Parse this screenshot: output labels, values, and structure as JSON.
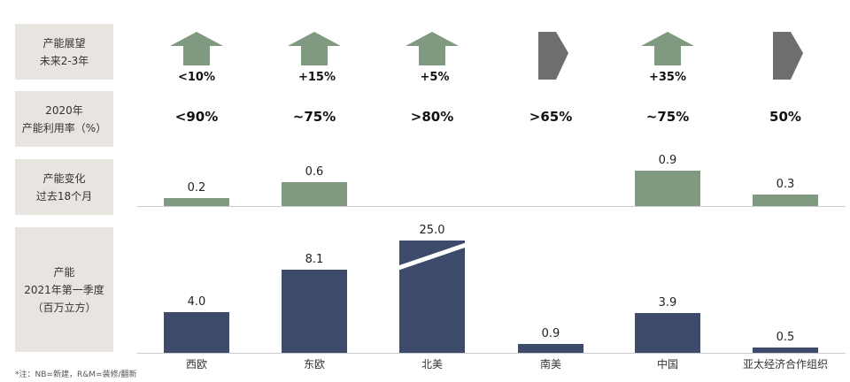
{
  "row_labels": [
    {
      "line1": "产能展望",
      "line2": "未来2-3年"
    },
    {
      "line1": "2020年",
      "line2": "产能利用率（%）"
    },
    {
      "line1": "产能变化",
      "line2": "过去18个月"
    },
    {
      "line1": "产能",
      "line2": "2021年第一季度",
      "line3": "（百万立方）"
    }
  ],
  "colors": {
    "green": "#7f9a80",
    "gray": "#6e6e6e",
    "navy": "#3d4a6b"
  },
  "chart_data": {
    "type": "bar",
    "categories": [
      "西欧",
      "东欧",
      "北美",
      "南美",
      "中国",
      "亚太经济合作组织"
    ],
    "outlook": {
      "direction": [
        "up",
        "up",
        "up",
        "right",
        "up",
        "right"
      ],
      "labels": [
        "<10%",
        "+15%",
        "+5%",
        "",
        "+35%",
        ""
      ]
    },
    "utilization": [
      "<90%",
      "~75%",
      ">80%",
      ">65%",
      "~75%",
      "50%"
    ],
    "capacity_change": [
      0.2,
      0.6,
      null,
      null,
      0.9,
      0.3
    ],
    "capacity": [
      4.0,
      8.1,
      25.0,
      0.9,
      3.9,
      0.5
    ],
    "capacity_labels": [
      "4.0",
      "8.1",
      "25.0",
      "0.9",
      "3.9",
      "0.5"
    ],
    "change_labels": [
      "0.2",
      "0.6",
      "",
      "",
      "0.9",
      "0.3"
    ],
    "broken_axis_category": "北美"
  },
  "footnote": "*注：NB=新建，R&M=装修/翻新"
}
